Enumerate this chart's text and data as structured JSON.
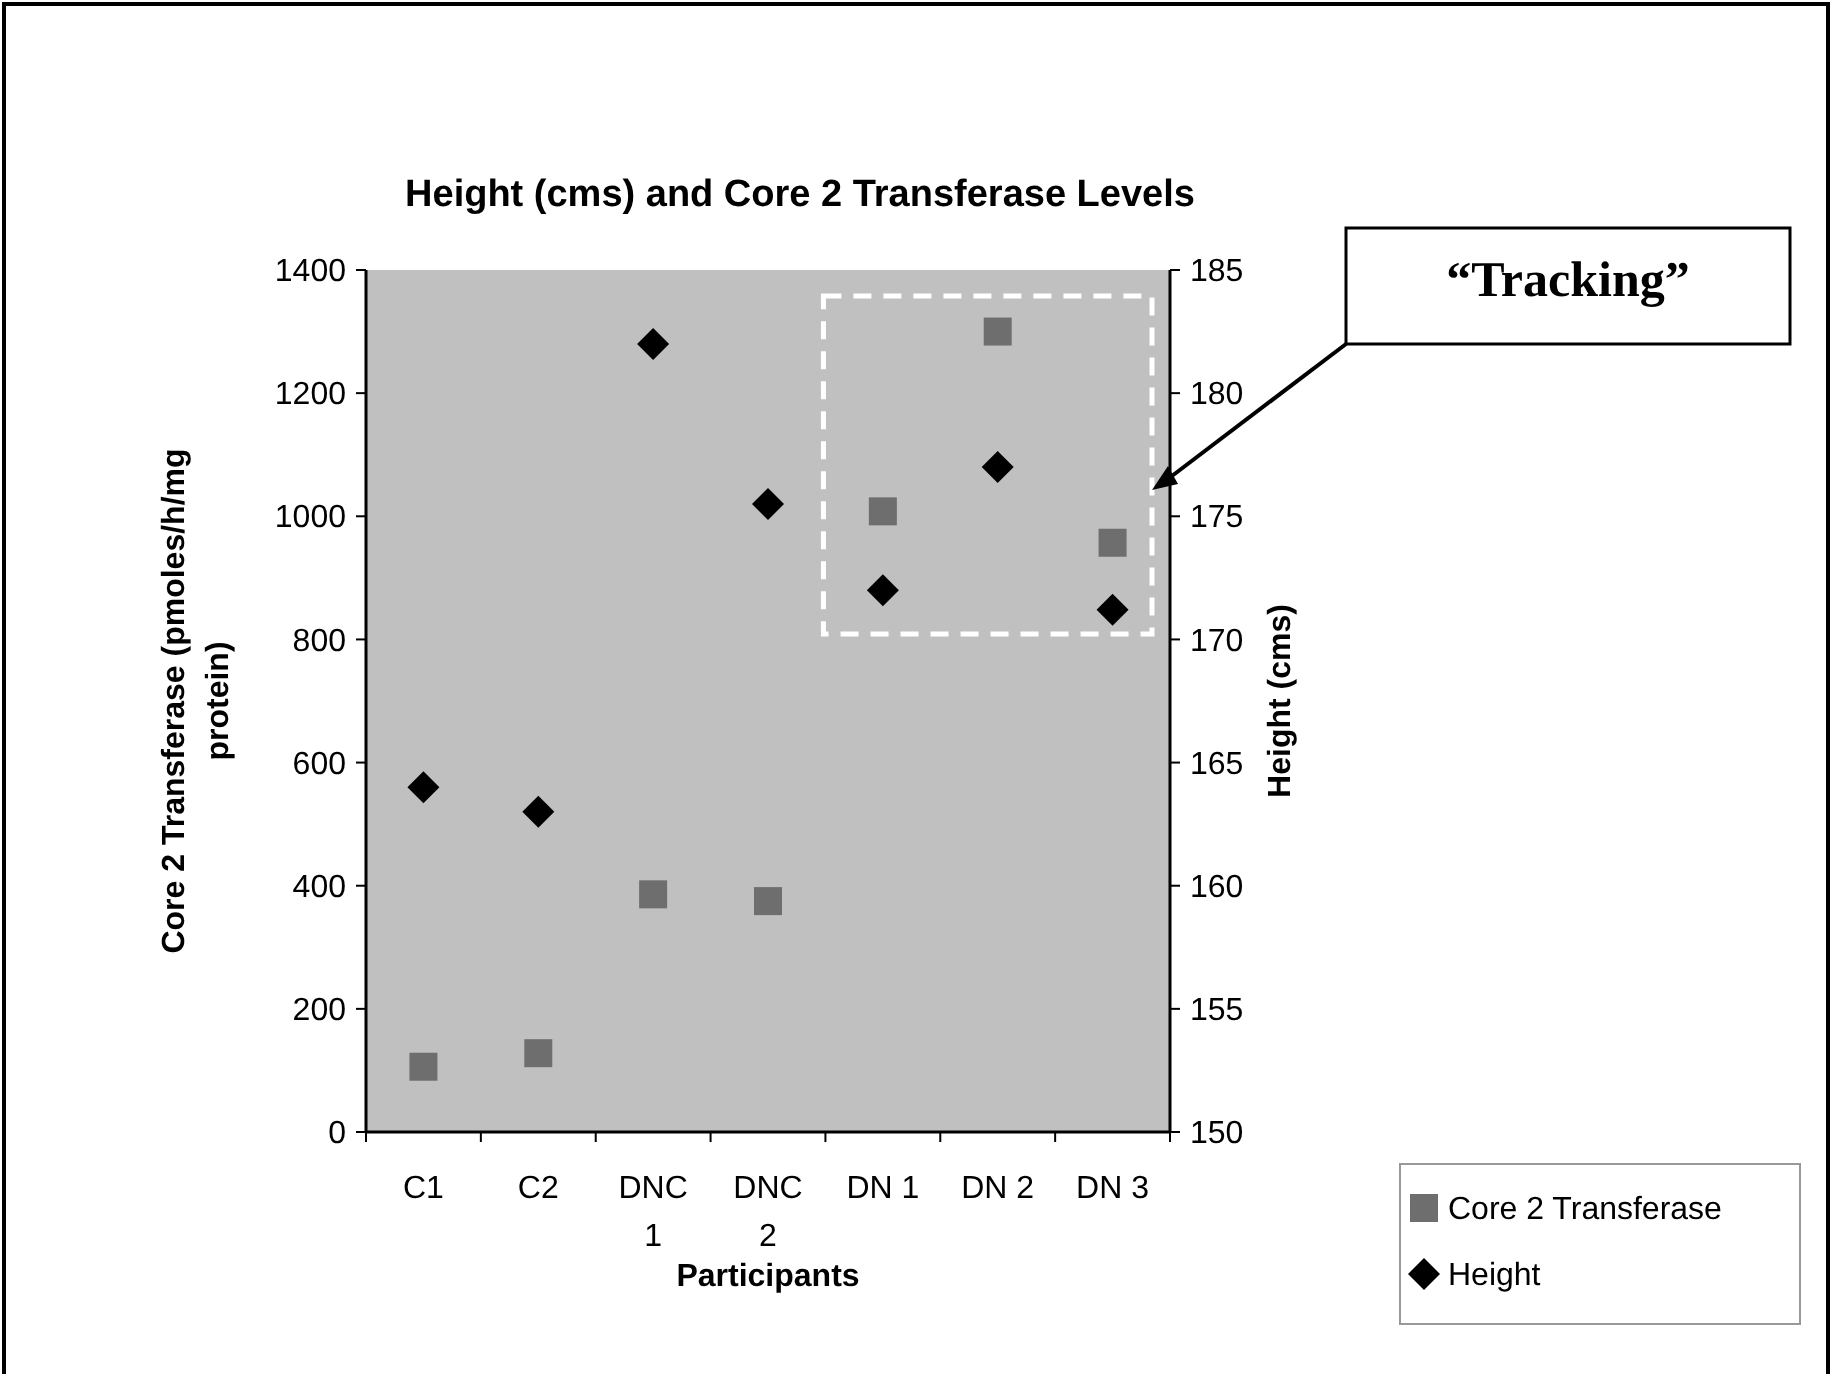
{
  "chart_data": {
    "type": "scatter",
    "title": "Height (cms) and Core 2 Transferase Levels",
    "xlabel": "Participants",
    "ylabel": "Core 2 Transferase (pmoles/h/mg protein)",
    "y2label": "Height (cms)",
    "categories": [
      "C1",
      "C2",
      "DNC 1",
      "DNC 2",
      "DN 1",
      "DN 2",
      "DN 3"
    ],
    "series": [
      {
        "name": "Core 2 Transferase",
        "color": "#6e6e6e",
        "marker": "square",
        "values": [
          106,
          128,
          386,
          375,
          1008,
          1300,
          957
        ]
      },
      {
        "name": "Height",
        "color": "#000000",
        "marker": "diamond",
        "axis": "y2",
        "values": [
          164,
          163,
          182,
          175.5,
          172,
          177,
          171.2
        ]
      }
    ],
    "ylim": [
      0,
      1400
    ],
    "yticks": [
      0,
      200,
      400,
      600,
      800,
      1000,
      1200,
      1400
    ],
    "y2lim": [
      150,
      185
    ],
    "y2ticks": [
      150,
      155,
      160,
      165,
      170,
      175,
      180,
      185
    ],
    "annotations": [
      "“Tracking”"
    ],
    "grid": false,
    "legend": "bottom right"
  }
}
